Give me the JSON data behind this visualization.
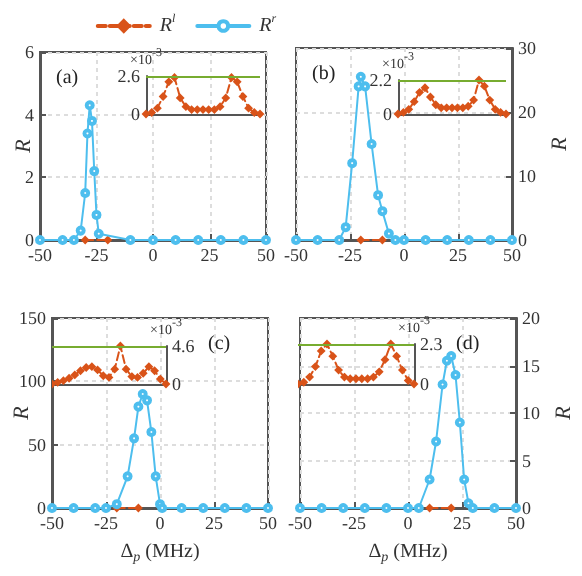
{
  "chart_data": [
    {
      "type": "line",
      "annotations": [
        "(a)"
      ],
      "ylabel": "R",
      "xlim": [
        -50,
        50
      ],
      "xticks": [
        -50,
        -25,
        0,
        25,
        50
      ],
      "ylim": [
        0,
        6
      ],
      "yticks": [
        0,
        2,
        4,
        6
      ],
      "grid": true,
      "legend": "top",
      "series": [
        {
          "name": "R$^{l}$",
          "color": "#d95319",
          "marker": "diamond",
          "line_style": "dashed",
          "x": [
            -30,
            -20
          ],
          "values": [
            0,
            0
          ]
        },
        {
          "name": "R$^{r}$",
          "color": "#4dbeee",
          "marker": "circle",
          "line_style": "solid",
          "x": [
            -50,
            -40,
            -35,
            -32,
            -30,
            -29,
            -28,
            -27,
            -26,
            -25,
            -24,
            -10,
            0,
            10,
            20,
            30,
            40,
            50
          ],
          "values": [
            0,
            0,
            0,
            0.3,
            1.5,
            3.4,
            4.3,
            3.8,
            2.2,
            0.8,
            0.2,
            0,
            0,
            0,
            0,
            0,
            0,
            0
          ]
        }
      ]
    },
    {
      "type": "line",
      "ylabel": "×10$^{-3}$",
      "categories": [
        null,
        null,
        null,
        null,
        null,
        null,
        null,
        null,
        null,
        null,
        null,
        null,
        null,
        null,
        null,
        null,
        null,
        null,
        null,
        null,
        null
      ],
      "ylim": [
        0,
        2.6
      ],
      "yticks": [
        0,
        2.6
      ],
      "tick_labels": "y",
      "ref_lines": [
        {
          "axis": "y",
          "value": 2.6,
          "color": "#77ac30"
        }
      ],
      "series": [
        {
          "color": "#d95319",
          "marker": "diamond",
          "line_style": "dashed",
          "values": [
            0,
            0.1,
            0.4,
            1.2,
            2.2,
            2.5,
            1.1,
            0.5,
            0.3,
            0.3,
            0.3,
            0.3,
            0.3,
            0.5,
            1.1,
            2.5,
            2.2,
            1.2,
            0.4,
            0.1,
            0
          ]
        }
      ]
    },
    {
      "type": "line",
      "annotations": [
        "(b)"
      ],
      "ylabel": "R",
      "xlim": [
        -50,
        50
      ],
      "xticks": [
        -50,
        -25,
        0,
        25,
        50
      ],
      "ylim": [
        0,
        30
      ],
      "yticks": [
        0,
        10,
        20,
        30
      ],
      "grid": true,
      "series": [
        {
          "color": "#d95319",
          "marker": "diamond",
          "line_style": "dashed",
          "x": [
            -20,
            -10
          ],
          "values": [
            0,
            0
          ]
        },
        {
          "color": "#4dbeee",
          "marker": "circle",
          "line_style": "solid",
          "x": [
            -50,
            -40,
            -30,
            -27,
            -24,
            -21,
            -20,
            -18,
            -15,
            -12,
            -10,
            -7,
            -4,
            0,
            10,
            20,
            30,
            40,
            50
          ],
          "values": [
            0,
            0,
            0,
            2,
            12,
            24,
            25.5,
            24,
            15,
            7,
            4.5,
            1,
            0,
            0,
            0,
            0,
            0,
            0,
            0
          ]
        }
      ]
    },
    {
      "type": "line",
      "ylabel": "×10$^{-3}$",
      "categories": [
        null,
        null,
        null,
        null,
        null,
        null,
        null,
        null,
        null,
        null,
        null,
        null,
        null,
        null,
        null,
        null,
        null,
        null,
        null,
        null,
        null
      ],
      "ylim": [
        0,
        2.2
      ],
      "yticks": [
        0,
        2.2
      ],
      "tick_labels": "y",
      "ref_lines": [
        {
          "axis": "y",
          "value": 2.2,
          "color": "#77ac30"
        }
      ],
      "series": [
        {
          "color": "#d95319",
          "marker": "diamond",
          "line_style": "dashed",
          "values": [
            0,
            0.1,
            0.3,
            0.8,
            1.4,
            1.7,
            1.1,
            0.6,
            0.4,
            0.4,
            0.4,
            0.4,
            0.4,
            0.5,
            0.9,
            2.2,
            1.8,
            0.9,
            0.3,
            0.1,
            0
          ]
        }
      ]
    },
    {
      "type": "line",
      "annotations": [
        "(c)"
      ],
      "xlabel": "Δ$_{p}$ (MHz)",
      "ylabel": "R",
      "xlim": [
        -50,
        50
      ],
      "xticks": [
        -50,
        -25,
        0,
        25,
        50
      ],
      "ylim": [
        0,
        150
      ],
      "yticks": [
        0,
        50,
        100,
        150
      ],
      "grid": true,
      "series": [
        {
          "color": "#d95319",
          "marker": "diamond",
          "line_style": "dashed",
          "x": [
            -20,
            -10
          ],
          "values": [
            0,
            0
          ]
        },
        {
          "color": "#4dbeee",
          "marker": "circle",
          "line_style": "solid",
          "x": [
            -50,
            -40,
            -30,
            -25,
            -20,
            -15,
            -12,
            -10,
            -8,
            -6,
            -4,
            -2,
            0,
            1,
            10,
            20,
            30,
            40,
            50
          ],
          "values": [
            0,
            0,
            0,
            0,
            3,
            25,
            55,
            80,
            90,
            85,
            60,
            25,
            3,
            0,
            0,
            0,
            0,
            0,
            0
          ]
        }
      ]
    },
    {
      "type": "line",
      "ylabel": "×10$^{-3}$",
      "categories": [
        null,
        null,
        null,
        null,
        null,
        null,
        null,
        null,
        null,
        null,
        null,
        null,
        null,
        null,
        null,
        null,
        null,
        null,
        null,
        null,
        null
      ],
      "ylim": [
        0,
        4.6
      ],
      "yticks": [
        0,
        4.6
      ],
      "tick_labels": "y",
      "ref_lines": [
        {
          "axis": "y",
          "value": 4.6,
          "color": "#77ac30"
        }
      ],
      "series": [
        {
          "color": "#d95319",
          "marker": "diamond",
          "line_style": "dashed",
          "values": [
            0,
            0.2,
            0.4,
            0.7,
            1.1,
            1.6,
            2,
            2.1,
            1.7,
            1,
            0.8,
            1.8,
            4.6,
            1.8,
            0.9,
            0.8,
            1.3,
            2.1,
            1.6,
            0.6,
            0
          ]
        }
      ]
    },
    {
      "type": "line",
      "annotations": [
        "(d)"
      ],
      "xlabel": "Δ$_{p}$ (MHz)",
      "ylabel": "R",
      "xlim": [
        -50,
        50
      ],
      "xticks": [
        -50,
        -25,
        0,
        25,
        50
      ],
      "ylim": [
        0,
        20
      ],
      "yticks": [
        0,
        5,
        10,
        15,
        20
      ],
      "grid": true,
      "series": [
        {
          "color": "#d95319",
          "marker": "diamond",
          "line_style": "dashed",
          "x": [
            10,
            20
          ],
          "values": [
            0,
            0
          ]
        },
        {
          "color": "#4dbeee",
          "marker": "circle",
          "line_style": "solid",
          "x": [
            -50,
            -40,
            -30,
            -20,
            -10,
            0,
            5,
            10,
            13,
            16,
            18,
            20,
            22,
            24,
            26,
            28,
            30,
            40,
            50
          ],
          "values": [
            0,
            0,
            0,
            0,
            0,
            0,
            0,
            3,
            7,
            13,
            15.5,
            16,
            14,
            9,
            3,
            0.5,
            0,
            0,
            0
          ]
        }
      ]
    },
    {
      "type": "line",
      "ylabel": "×10$^{-3}$",
      "categories": [
        null,
        null,
        null,
        null,
        null,
        null,
        null,
        null,
        null,
        null,
        null,
        null,
        null,
        null,
        null,
        null,
        null,
        null,
        null,
        null,
        null
      ],
      "ylim": [
        0,
        2.3
      ],
      "yticks": [
        0,
        2.3
      ],
      "tick_labels": "y",
      "ref_lines": [
        {
          "axis": "y",
          "value": 2.3,
          "color": "#77ac30"
        }
      ],
      "series": [
        {
          "color": "#d95319",
          "marker": "diamond",
          "line_style": "dashed",
          "values": [
            0,
            0.1,
            0.4,
            1,
            1.9,
            2.3,
            1.6,
            0.8,
            0.4,
            0.3,
            0.3,
            0.3,
            0.3,
            0.4,
            0.7,
            1.4,
            2.3,
            1.6,
            0.8,
            0.2,
            0
          ]
        }
      ]
    }
  ]
}
